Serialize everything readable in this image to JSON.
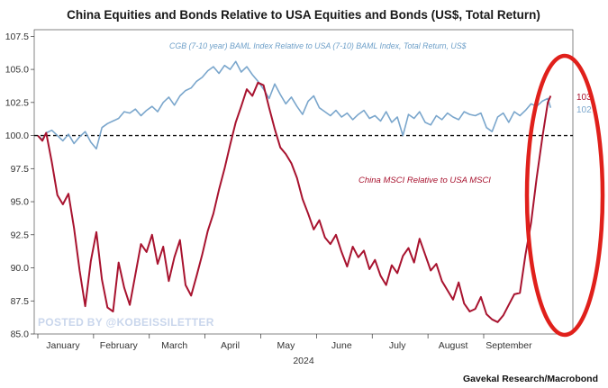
{
  "chart_data": {
    "type": "line",
    "title": "China Equities and Bonds Relative to USA Equities and Bonds (US$, Total Return)",
    "xlabel": "2024",
    "ylabel": "",
    "ylim": [
      85.0,
      108.0
    ],
    "yticks": [
      85.0,
      87.5,
      90.0,
      92.5,
      95.0,
      97.5,
      100.0,
      102.5,
      105.0,
      107.5
    ],
    "ytick_labels": [
      "85.0",
      "87.5",
      "90.0",
      "92.5",
      "95.0",
      "97.5",
      "100.0",
      "102.5",
      "105.0",
      "107.5"
    ],
    "xlim": [
      0,
      9.6
    ],
    "month_labels": [
      "January",
      "February",
      "March",
      "April",
      "May",
      "June",
      "July",
      "August",
      "September"
    ],
    "reference_line": 100.0,
    "series": [
      {
        "name": "CGB (7-10 year) BAML Index Relative to USA (7-10) BAML Index, Total Return, US$",
        "color": "#7aa6cc",
        "end_label": "102",
        "x": [
          0.0,
          0.08,
          0.15,
          0.25,
          0.35,
          0.45,
          0.55,
          0.65,
          0.75,
          0.85,
          0.95,
          1.05,
          1.15,
          1.25,
          1.35,
          1.45,
          1.55,
          1.65,
          1.75,
          1.85,
          1.95,
          2.05,
          2.15,
          2.25,
          2.35,
          2.45,
          2.55,
          2.65,
          2.75,
          2.85,
          2.95,
          3.05,
          3.15,
          3.25,
          3.35,
          3.45,
          3.55,
          3.65,
          3.75,
          3.85,
          3.95,
          4.05,
          4.15,
          4.25,
          4.35,
          4.45,
          4.55,
          4.65,
          4.75,
          4.85,
          4.95,
          5.05,
          5.15,
          5.25,
          5.35,
          5.45,
          5.55,
          5.65,
          5.75,
          5.85,
          5.95,
          6.05,
          6.15,
          6.25,
          6.35,
          6.45,
          6.55,
          6.65,
          6.75,
          6.85,
          6.95,
          7.05,
          7.15,
          7.25,
          7.35,
          7.45,
          7.55,
          7.65,
          7.75,
          7.85,
          7.95,
          8.05,
          8.15,
          8.25,
          8.35,
          8.45,
          8.55,
          8.65,
          8.75,
          8.85,
          8.95,
          9.05,
          9.15,
          9.2
        ],
        "values": [
          100.0,
          99.7,
          100.2,
          100.4,
          100.0,
          99.6,
          100.1,
          99.4,
          99.9,
          100.3,
          99.5,
          99.0,
          100.6,
          100.9,
          101.1,
          101.3,
          101.8,
          101.7,
          102.0,
          101.5,
          101.9,
          102.2,
          101.8,
          102.5,
          102.9,
          102.3,
          103.0,
          103.4,
          103.6,
          104.1,
          104.4,
          104.9,
          105.2,
          104.7,
          105.3,
          105.0,
          105.6,
          104.8,
          105.2,
          104.6,
          104.1,
          103.5,
          102.8,
          103.9,
          103.1,
          102.4,
          102.9,
          102.2,
          101.6,
          102.6,
          103.0,
          102.1,
          101.8,
          101.5,
          101.9,
          101.4,
          101.7,
          101.2,
          101.6,
          101.9,
          101.3,
          101.5,
          101.1,
          101.8,
          101.0,
          101.4,
          100.0,
          101.6,
          101.3,
          101.8,
          101.0,
          100.8,
          101.5,
          101.2,
          101.7,
          101.4,
          101.2,
          101.8,
          101.6,
          101.5,
          101.7,
          100.6,
          100.3,
          101.4,
          101.7,
          101.0,
          101.8,
          101.5,
          101.9,
          102.4,
          102.2,
          102.6,
          102.8,
          102.1
        ]
      },
      {
        "name": "China MSCI Relative to USA MSCI",
        "color": "#a8132f",
        "end_label": "103",
        "x": [
          0.0,
          0.08,
          0.15,
          0.25,
          0.35,
          0.45,
          0.55,
          0.65,
          0.75,
          0.85,
          0.95,
          1.05,
          1.15,
          1.25,
          1.35,
          1.45,
          1.55,
          1.65,
          1.75,
          1.85,
          1.95,
          2.05,
          2.15,
          2.25,
          2.35,
          2.45,
          2.55,
          2.65,
          2.75,
          2.85,
          2.95,
          3.05,
          3.15,
          3.25,
          3.35,
          3.45,
          3.55,
          3.65,
          3.75,
          3.85,
          3.95,
          4.05,
          4.15,
          4.25,
          4.35,
          4.45,
          4.55,
          4.65,
          4.75,
          4.85,
          4.95,
          5.05,
          5.15,
          5.25,
          5.35,
          5.45,
          5.55,
          5.65,
          5.75,
          5.85,
          5.95,
          6.05,
          6.15,
          6.25,
          6.35,
          6.45,
          6.55,
          6.65,
          6.75,
          6.85,
          6.95,
          7.05,
          7.15,
          7.25,
          7.35,
          7.45,
          7.55,
          7.65,
          7.75,
          7.85,
          7.95,
          8.05,
          8.15,
          8.25,
          8.35,
          8.45,
          8.55,
          8.65,
          8.75,
          8.85,
          8.95,
          9.05,
          9.15,
          9.2
        ],
        "values": [
          100.0,
          99.6,
          100.2,
          98.0,
          95.5,
          94.8,
          95.6,
          93.0,
          89.8,
          87.1,
          90.5,
          92.7,
          89.1,
          87.0,
          86.7,
          90.4,
          88.5,
          87.2,
          89.5,
          91.8,
          91.2,
          92.5,
          90.3,
          91.6,
          89.0,
          90.8,
          92.1,
          88.7,
          87.9,
          89.4,
          91.0,
          92.8,
          94.1,
          95.9,
          97.5,
          99.3,
          101.0,
          102.2,
          103.5,
          103.0,
          104.0,
          103.8,
          102.1,
          100.5,
          99.1,
          98.6,
          97.9,
          96.8,
          95.2,
          94.1,
          92.9,
          93.6,
          92.3,
          91.8,
          92.5,
          91.2,
          90.1,
          91.6,
          90.8,
          91.3,
          89.9,
          90.6,
          89.4,
          88.7,
          90.2,
          89.6,
          90.9,
          91.5,
          90.4,
          92.2,
          91.0,
          89.8,
          90.3,
          89.0,
          88.3,
          87.6,
          88.9,
          87.3,
          86.7,
          86.9,
          87.8,
          86.5,
          86.1,
          85.9,
          86.4,
          87.2,
          88.0,
          88.1,
          91.0,
          93.4,
          96.8,
          99.8,
          102.5,
          103.0
        ]
      }
    ],
    "annotations": [
      {
        "text": "CGB (7-10 year) BAML Index Relative to USA (7-10) BAML Index, Total Return, US$",
        "series": 0
      },
      {
        "text": "China MSCI Relative to USA MSCI",
        "series": 1
      }
    ],
    "source": "Gavekal Research/Macrobond",
    "watermark": "POSTED BY @KOBEISSILETTER",
    "highlight": {
      "shape": "ellipse",
      "color": "#e0201b",
      "target": "September"
    }
  }
}
